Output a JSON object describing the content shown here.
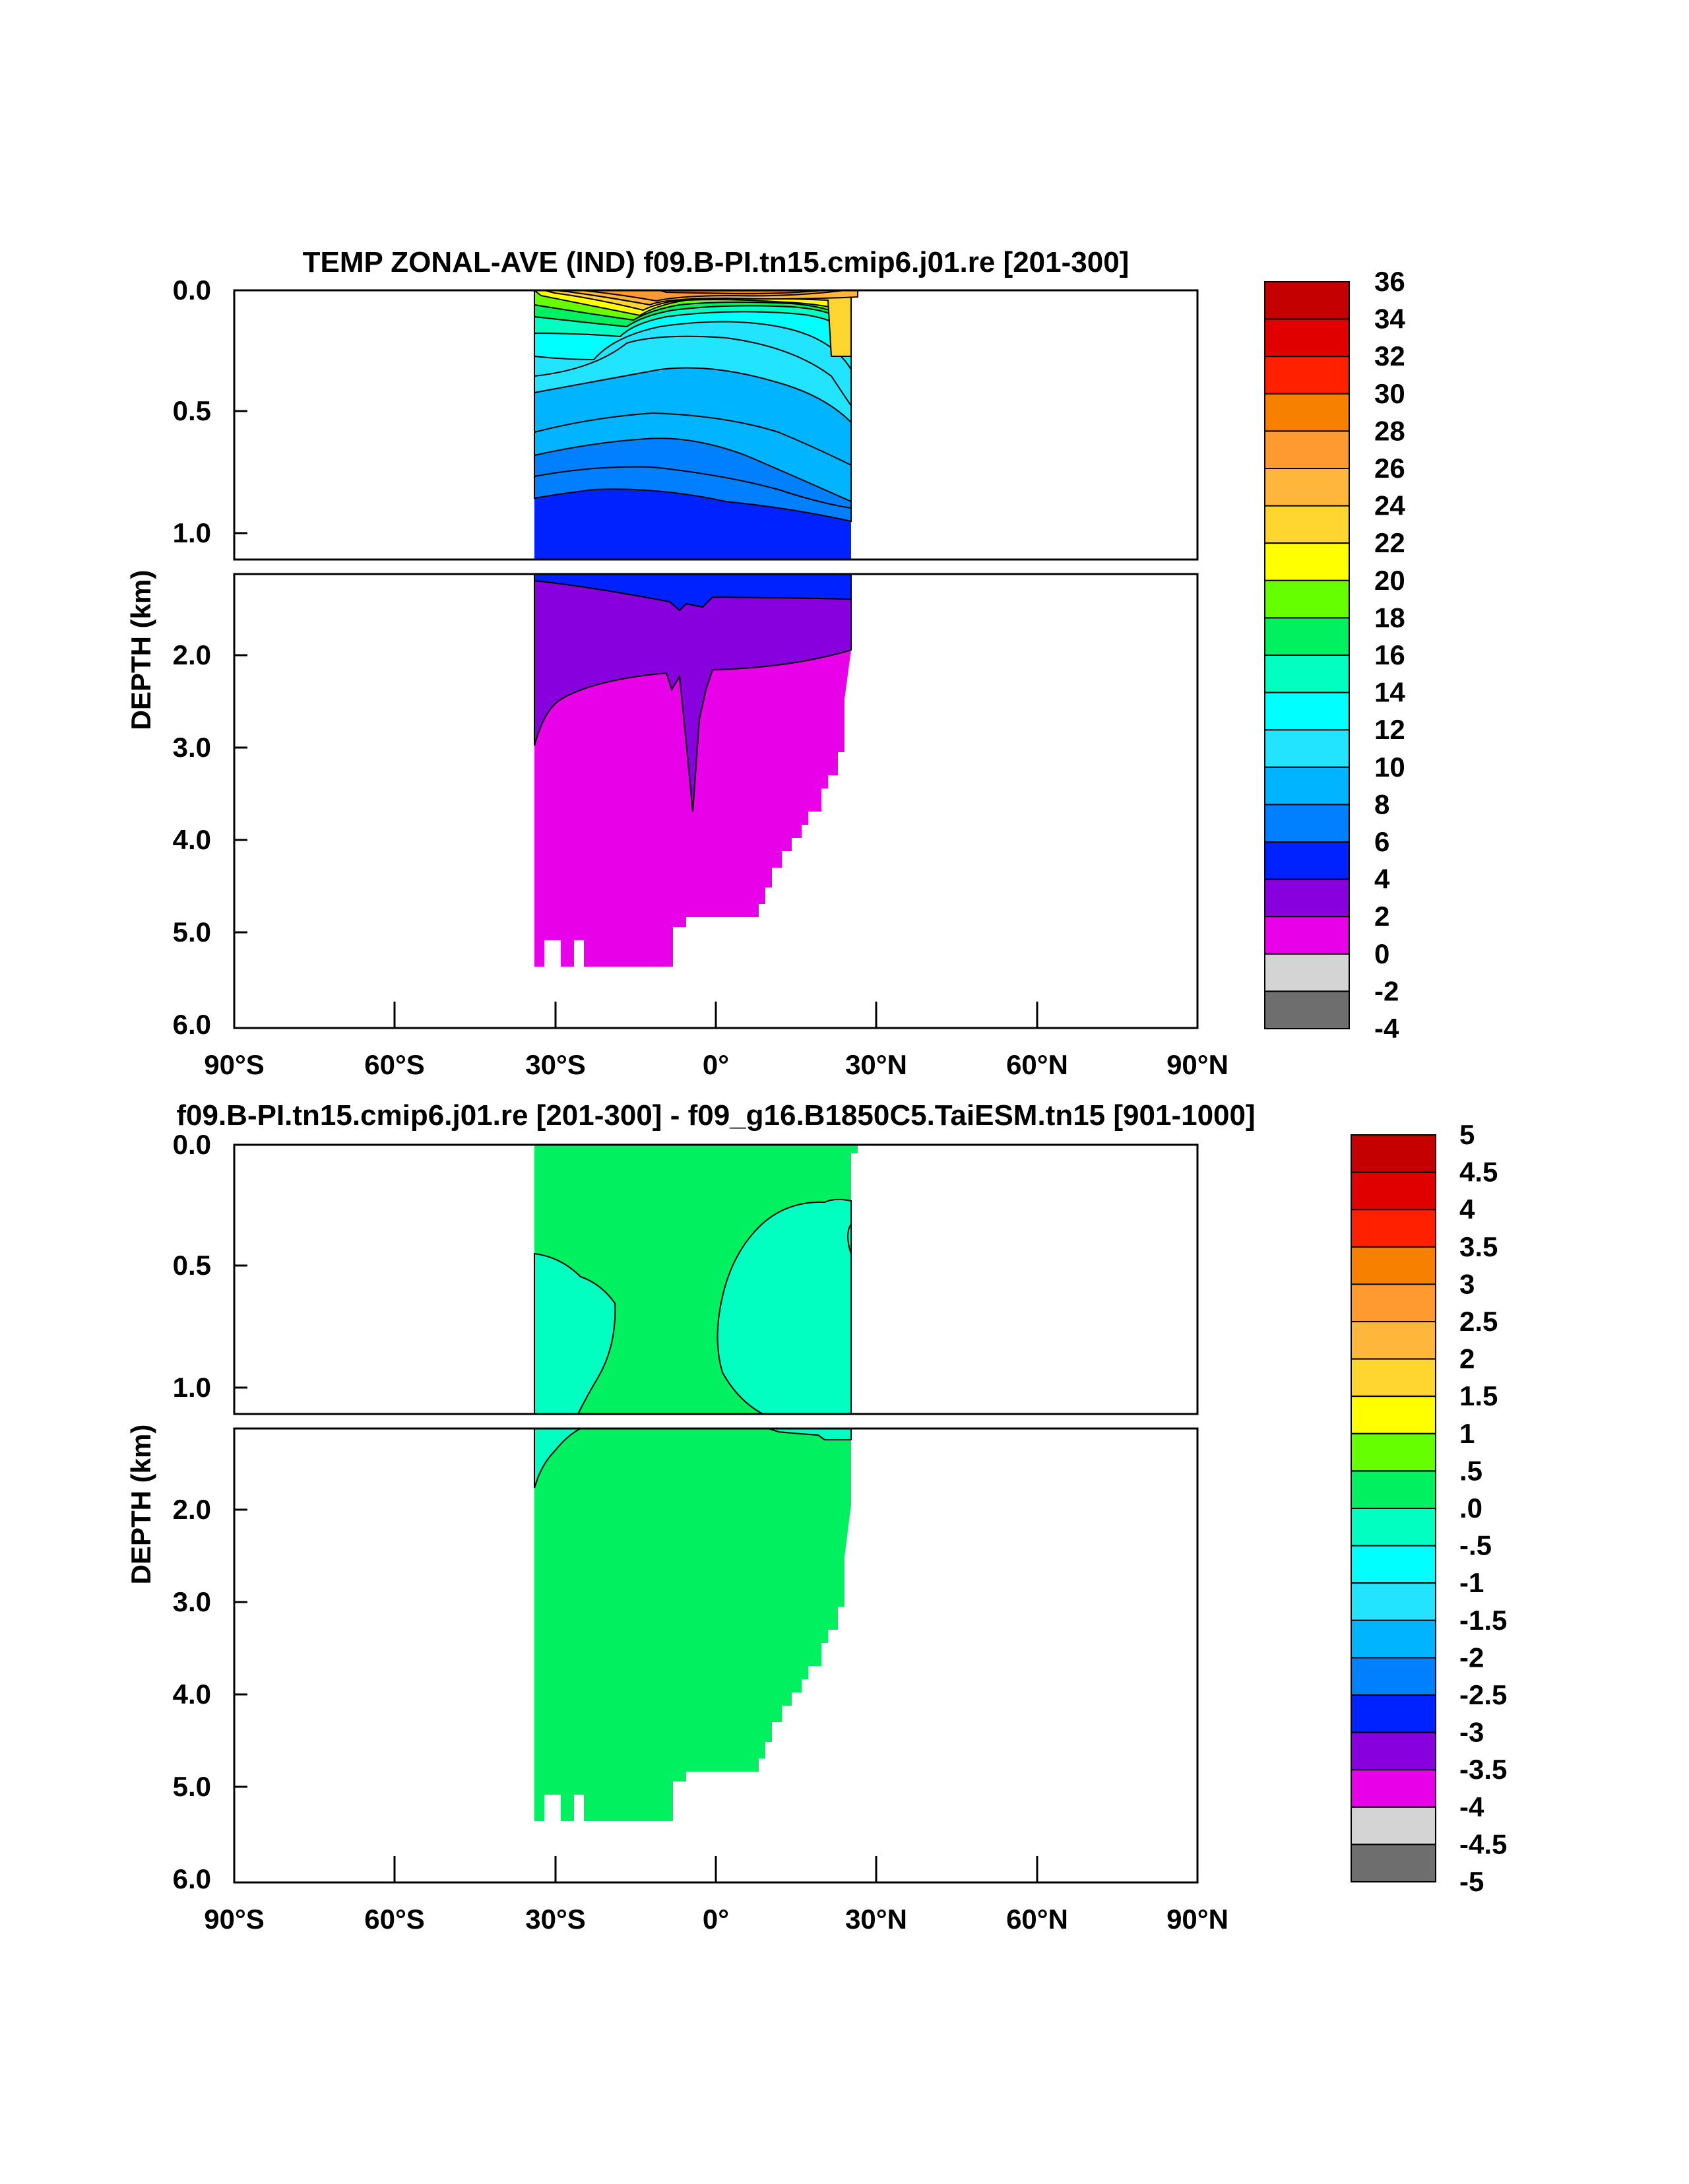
{
  "chart_data": [
    {
      "type": "heatmap",
      "subtype": "filled-contour depth-latitude section",
      "title": "TEMP ZONAL-AVE (IND) f09.B-PI.tn15.cmip6.j01.re [201-300]",
      "ylabel": "DEPTH (km)",
      "x_ticks": [
        "90°S",
        "60°S",
        "30°S",
        "0°",
        "30°N",
        "60°N",
        "90°N"
      ],
      "x_tick_values": [
        -90,
        -60,
        -30,
        0,
        30,
        60,
        90
      ],
      "y_ticks_upper": [
        "0.0",
        "0.5",
        "1.0"
      ],
      "y_ticks_lower": [
        "2.0",
        "3.0",
        "4.0",
        "5.0",
        "6.0"
      ],
      "y_tick_values_upper": [
        0.0,
        0.5,
        1.0
      ],
      "y_tick_values_lower": [
        2.0,
        3.0,
        4.0,
        5.0,
        6.0
      ],
      "xlim": [
        -90,
        90
      ],
      "ylim_upper": [
        0.0,
        1.1
      ],
      "ylim_lower": [
        1.1,
        6.0
      ],
      "colorbar_labels": [
        "36",
        "34",
        "32",
        "30",
        "28",
        "26",
        "24",
        "22",
        "20",
        "18",
        "16",
        "14",
        "12",
        "10",
        "8",
        "6",
        "4",
        "2",
        "0",
        "-2",
        "-4"
      ],
      "colorbar_colors": [
        "#c40000",
        "#e00000",
        "#ff2000",
        "#f88000",
        "#ff9a30",
        "#ffb63a",
        "#ffd530",
        "#ffff00",
        "#66ff00",
        "#00f060",
        "#00ffc0",
        "#00ffff",
        "#22e4ff",
        "#00b4ff",
        "#0080ff",
        "#0022ff",
        "#8800dd",
        "#e800e8",
        "#d4d4d4",
        "#6e6e6e"
      ],
      "data_region": {
        "lat_range": [
          -34,
          26
        ],
        "max_depth_km": 5.4
      },
      "features": [
        {
          "depth_km": [
            0.0,
            0.1
          ],
          "lat": [
            -34,
            26
          ],
          "value_range": [
            24,
            30
          ]
        },
        {
          "depth_km": [
            0.1,
            0.5
          ],
          "lat": [
            -34,
            26
          ],
          "value_range": [
            10,
            22
          ]
        },
        {
          "depth_km": [
            0.5,
            0.9
          ],
          "lat": [
            -34,
            26
          ],
          "value_range": [
            6,
            10
          ]
        },
        {
          "depth_km": [
            0.9,
            1.4
          ],
          "lat": [
            -34,
            26
          ],
          "value_range": [
            4,
            6
          ]
        },
        {
          "depth_km": [
            1.4,
            2.8
          ],
          "lat": [
            -34,
            26
          ],
          "value_range": [
            2,
            4
          ]
        },
        {
          "depth_km": [
            2.2,
            5.4
          ],
          "lat": [
            -34,
            26
          ],
          "value_range": [
            0,
            2
          ]
        }
      ]
    },
    {
      "type": "heatmap",
      "subtype": "filled-contour depth-latitude section (difference)",
      "title": "f09.B-PI.tn15.cmip6.j01.re [201-300] - f09_g16.B1850C5.TaiESM.tn15 [901-1000]",
      "ylabel": "DEPTH (km)",
      "x_ticks": [
        "90°S",
        "60°S",
        "30°S",
        "0°",
        "30°N",
        "60°N",
        "90°N"
      ],
      "x_tick_values": [
        -90,
        -60,
        -30,
        0,
        30,
        60,
        90
      ],
      "y_ticks_upper": [
        "0.0",
        "0.5",
        "1.0"
      ],
      "y_ticks_lower": [
        "2.0",
        "3.0",
        "4.0",
        "5.0",
        "6.0"
      ],
      "y_tick_values_upper": [
        0.0,
        0.5,
        1.0
      ],
      "y_tick_values_lower": [
        2.0,
        3.0,
        4.0,
        5.0,
        6.0
      ],
      "xlim": [
        -90,
        90
      ],
      "ylim_upper": [
        0.0,
        1.1
      ],
      "ylim_lower": [
        1.1,
        6.0
      ],
      "colorbar_labels": [
        "5",
        "4.5",
        "4",
        "3.5",
        "3",
        "2.5",
        "2",
        "1.5",
        "1",
        ".5",
        ".0",
        "-.5",
        "-1",
        "-1.5",
        "-2",
        "-2.5",
        "-3",
        "-3.5",
        "-4",
        "-4.5",
        "-5"
      ],
      "colorbar_colors": [
        "#c40000",
        "#e00000",
        "#ff2000",
        "#f88000",
        "#ff9a30",
        "#ffb63a",
        "#ffd530",
        "#ffff00",
        "#66ff00",
        "#00f060",
        "#00ffc0",
        "#00ffff",
        "#22e4ff",
        "#00b4ff",
        "#0080ff",
        "#0022ff",
        "#8800dd",
        "#e800e8",
        "#d4d4d4",
        "#6e6e6e"
      ],
      "data_region": {
        "lat_range": [
          -34,
          26
        ],
        "max_depth_km": 5.4
      },
      "features": [
        {
          "depth_km": [
            0.0,
            5.4
          ],
          "lat": [
            -34,
            26
          ],
          "value_range": [
            0.0,
            0.5
          ]
        },
        {
          "depth_km": [
            0.45,
            1.8
          ],
          "lat": [
            -34,
            -16
          ],
          "value_range": [
            -0.5,
            0.0
          ]
        },
        {
          "depth_km": [
            0.25,
            1.3
          ],
          "lat": [
            0,
            26
          ],
          "value_range": [
            -0.5,
            0.0
          ]
        }
      ]
    }
  ]
}
